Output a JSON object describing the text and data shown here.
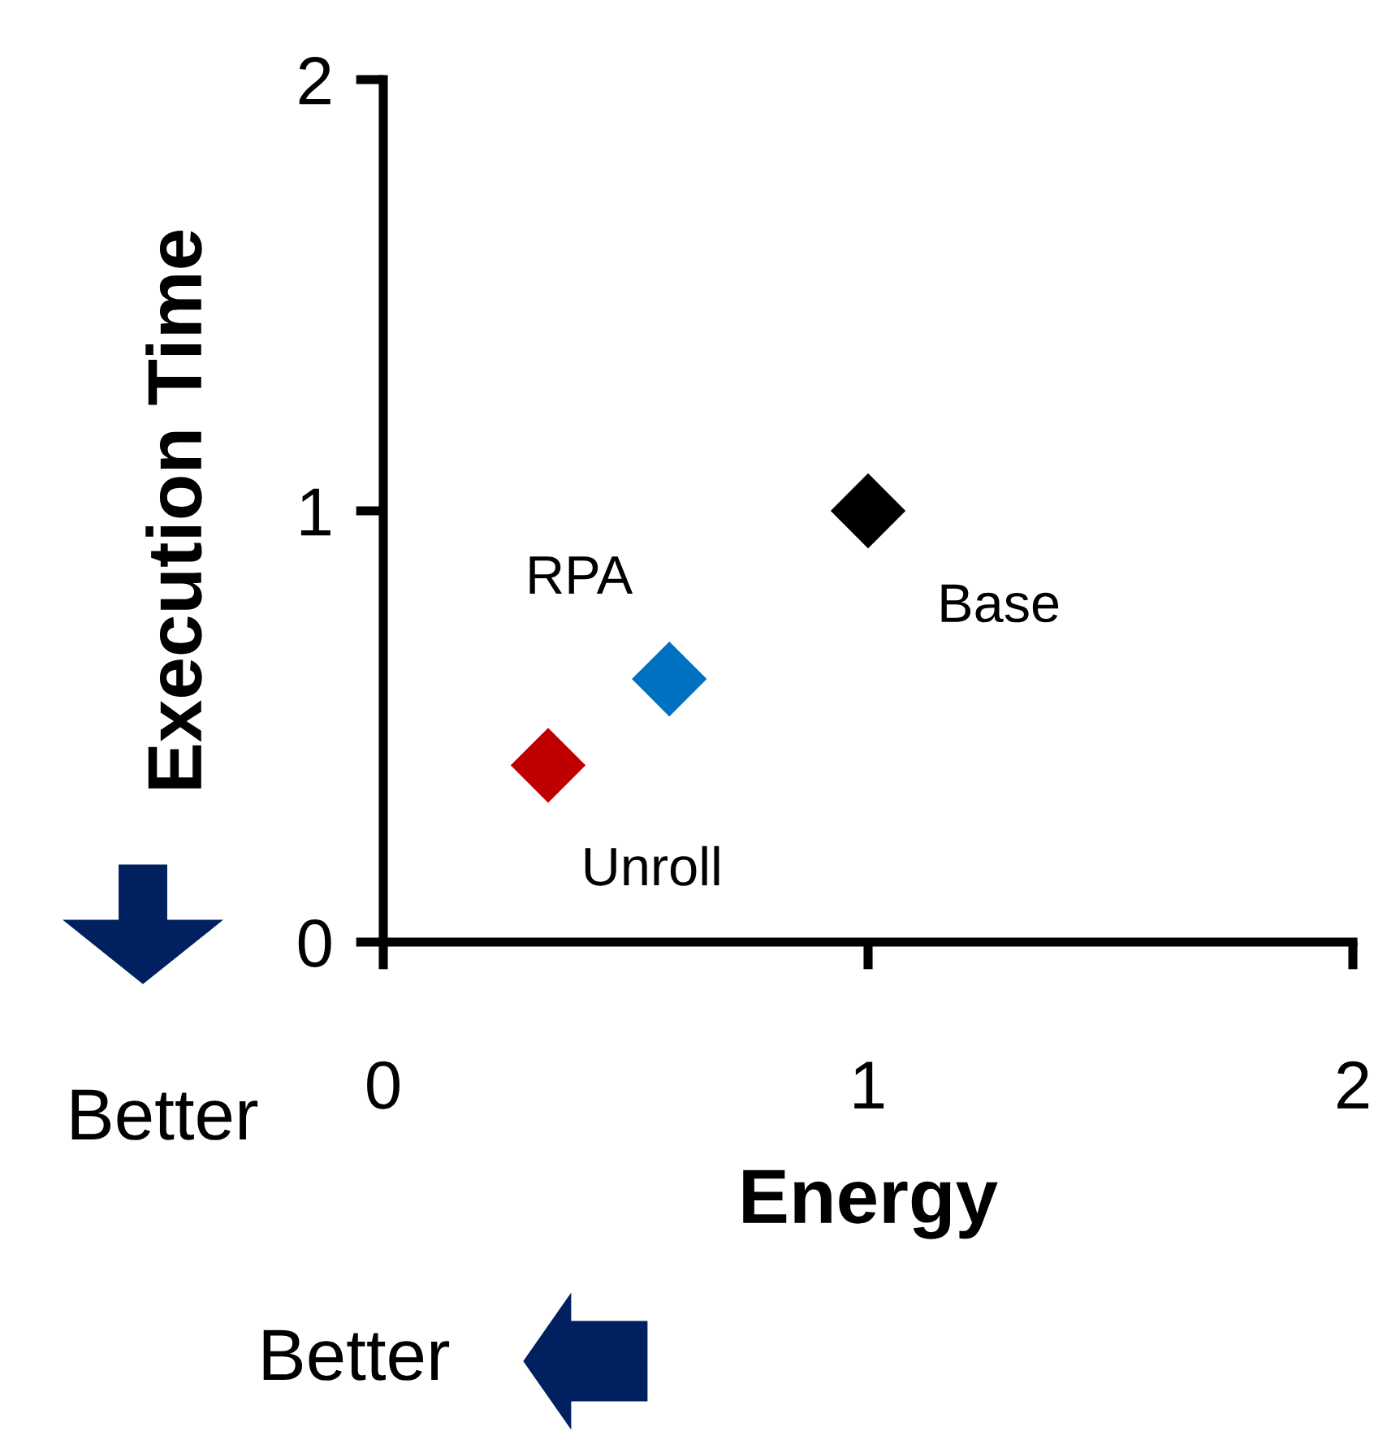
{
  "chart_data": {
    "type": "scatter",
    "xlabel": "Energy",
    "ylabel": "Execution Time",
    "series": [
      {
        "name": "Unroll",
        "color": "#c00000",
        "x": [
          0.34
        ],
        "values": [
          0.41
        ]
      },
      {
        "name": "RPA",
        "color": "#0070c0",
        "x": [
          0.59
        ],
        "values": [
          0.61
        ]
      },
      {
        "name": "Base",
        "color": "#000000",
        "x": [
          1
        ],
        "values": [
          1
        ]
      }
    ],
    "xlim": [
      0,
      2
    ],
    "ylim": [
      0,
      2
    ],
    "xticks": [
      0,
      1,
      2
    ],
    "yticks": [
      0,
      1,
      2
    ],
    "marker": "diamond",
    "grid": false,
    "legend": false,
    "annotations": [
      "Better",
      "Better"
    ]
  }
}
